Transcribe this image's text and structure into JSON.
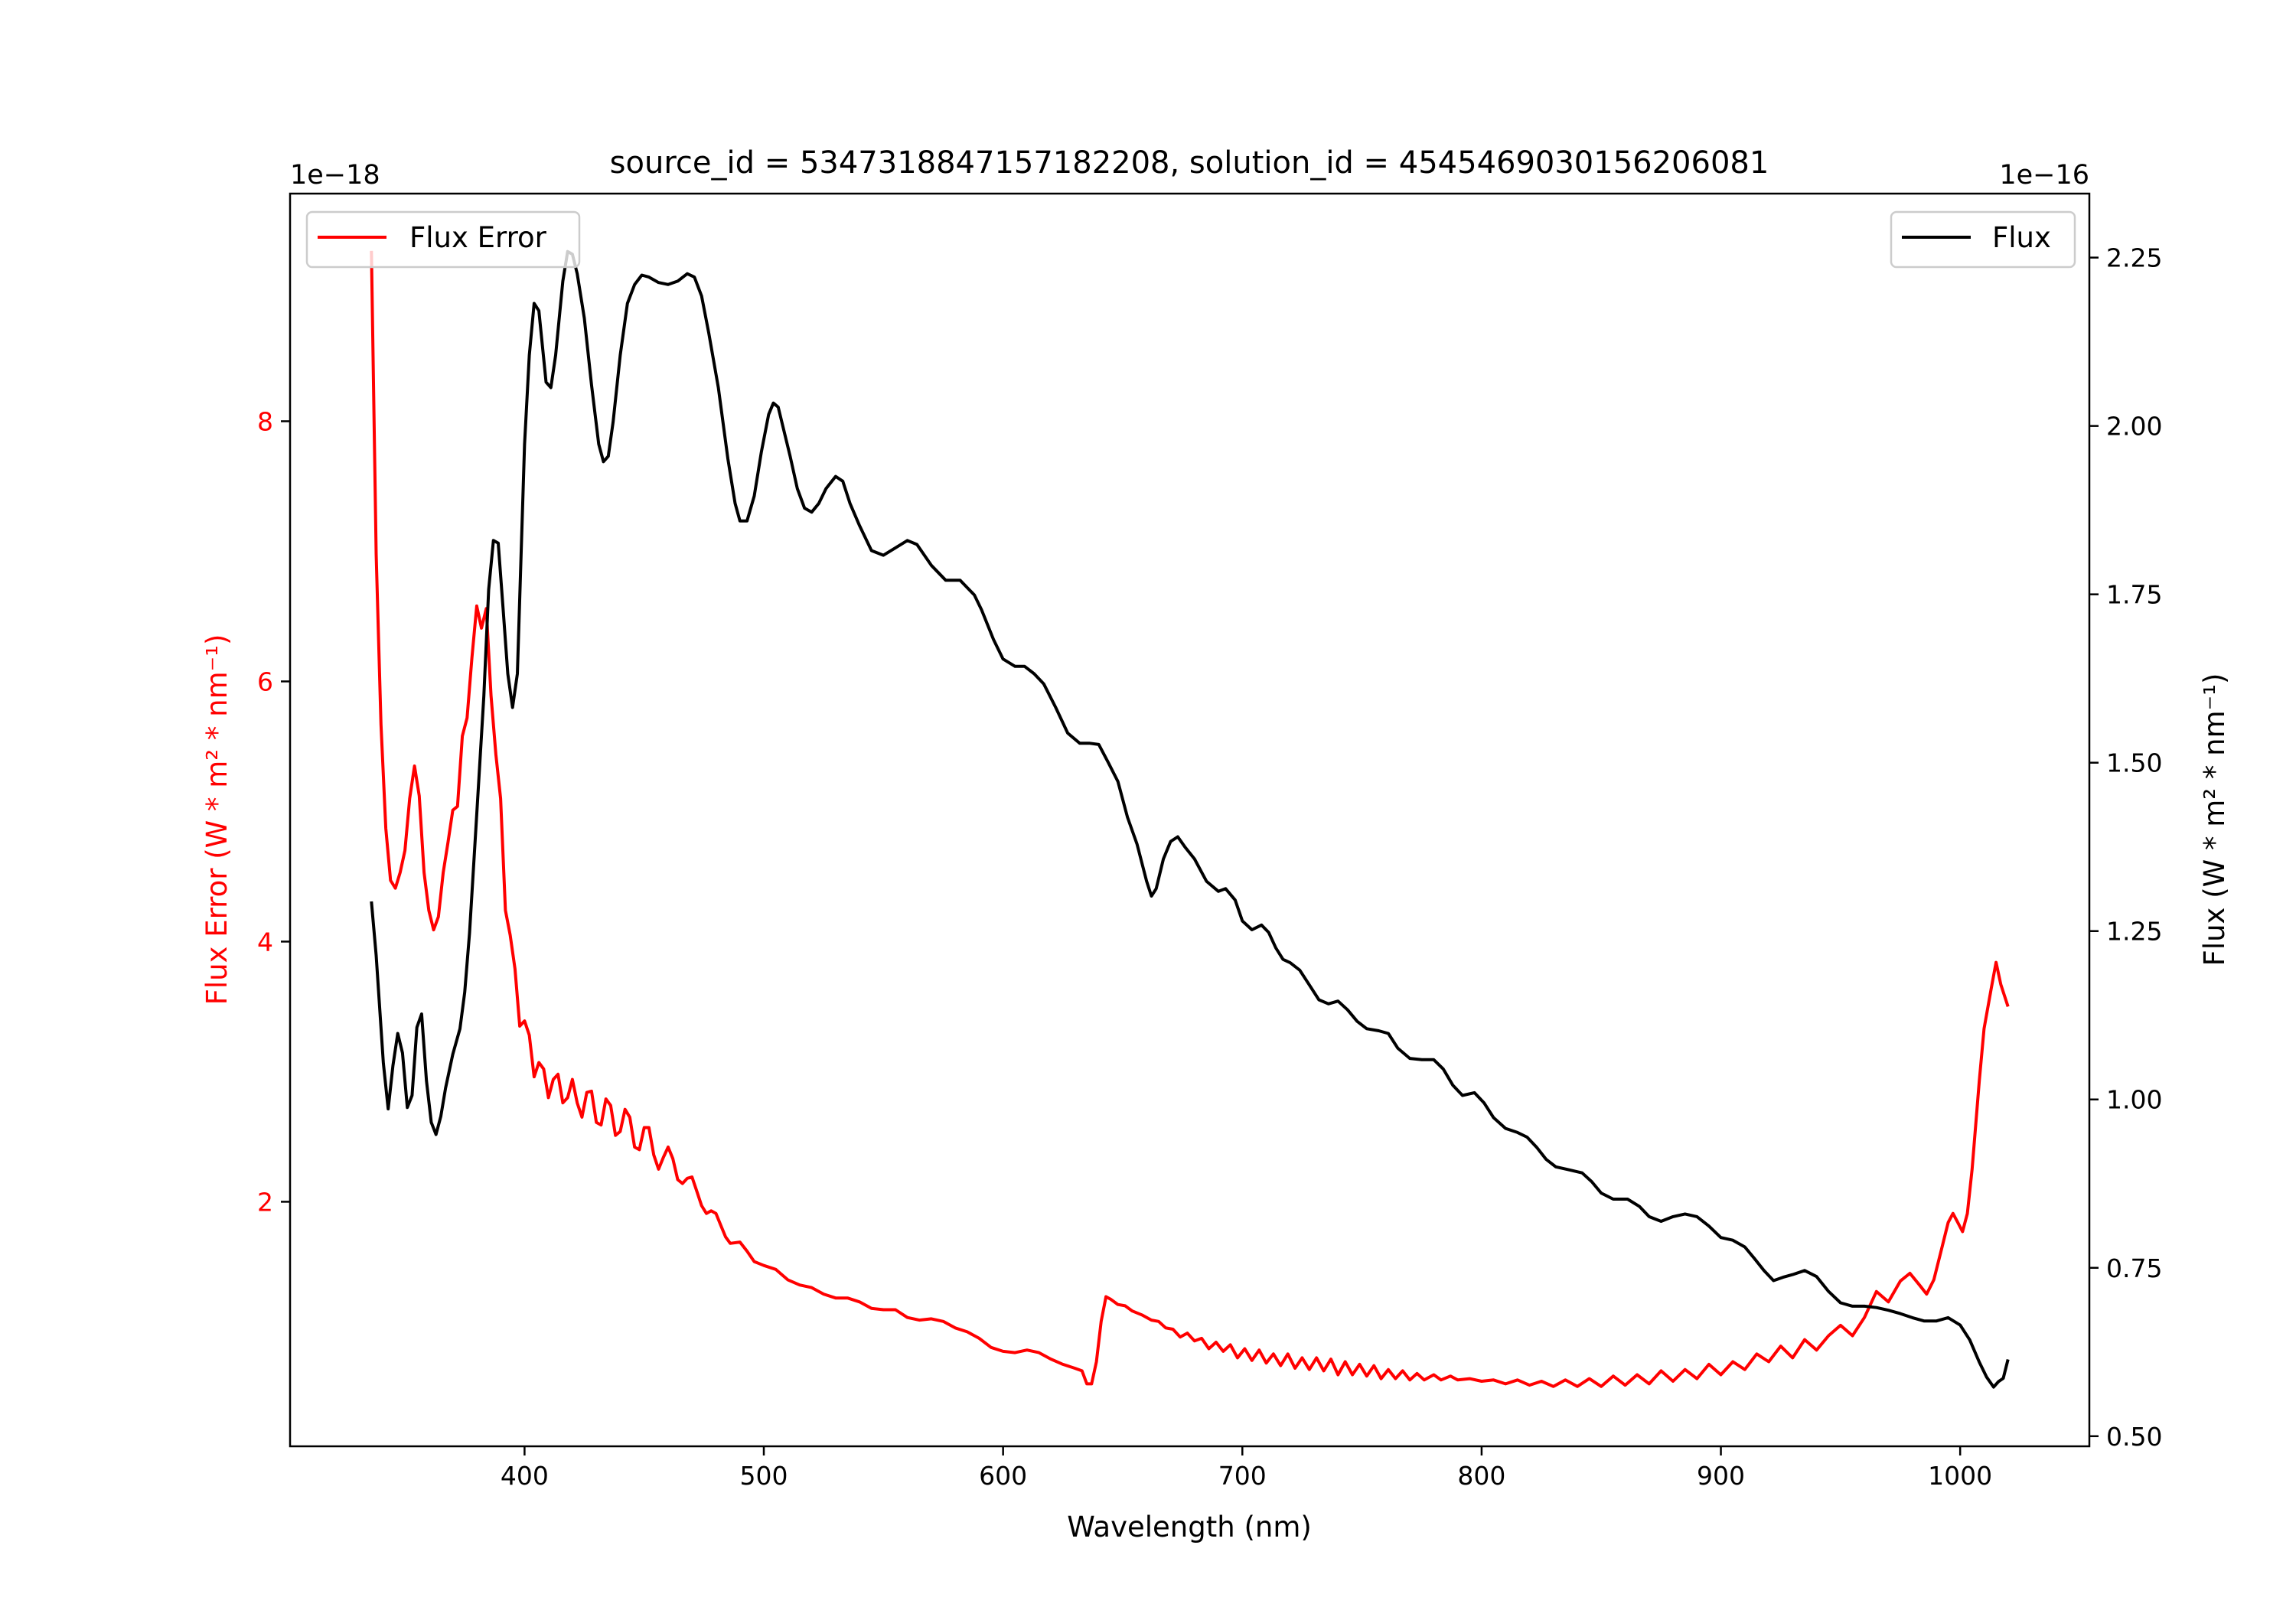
{
  "chart_data": {
    "type": "line",
    "title": "source_id = 5347318847157182208, solution_id = 4545469030156206081",
    "xlabel": "Wavelength (nm)",
    "xlim": [
      302,
      1054
    ],
    "xticks": [
      400,
      500,
      600,
      700,
      800,
      900,
      1000
    ],
    "axes": {
      "left": {
        "label": "Flux Error (W * m² * nm⁻¹)",
        "offset_text": "1e−18",
        "ylim": [
          0.12,
          9.75
        ],
        "ticks": [
          2,
          4,
          6,
          8
        ],
        "color": "#ff0000"
      },
      "right": {
        "label": "Flux (W * m² * nm⁻¹)",
        "offset_text": "1e−16",
        "ylim": [
          0.485,
          2.345
        ],
        "ticks": [
          0.5,
          0.75,
          1.0,
          1.25,
          1.5,
          1.75,
          2.0,
          2.25
        ],
        "color": "#000000"
      }
    },
    "series": [
      {
        "name": "Flux Error",
        "axis": "left",
        "color": "#ff0000",
        "legend": "upper-left",
        "x": [
          336,
          338,
          340,
          342,
          344,
          346,
          348,
          350,
          352,
          354,
          356,
          358,
          360,
          362,
          364,
          366,
          368,
          370,
          372,
          374,
          376,
          378,
          380,
          382,
          384,
          386,
          388,
          390,
          392,
          394,
          396,
          398,
          400,
          402,
          404,
          406,
          408,
          410,
          412,
          414,
          416,
          418,
          420,
          422,
          424,
          426,
          428,
          430,
          432,
          434,
          436,
          438,
          440,
          442,
          444,
          446,
          448,
          450,
          452,
          454,
          456,
          458,
          460,
          462,
          464,
          466,
          468,
          470,
          472,
          474,
          476,
          478,
          480,
          482,
          484,
          486,
          490,
          493,
          496,
          500,
          505,
          510,
          515,
          520,
          525,
          530,
          535,
          540,
          545,
          550,
          555,
          560,
          565,
          570,
          575,
          580,
          585,
          590,
          595,
          600,
          605,
          610,
          615,
          620,
          625,
          630,
          633,
          635,
          637,
          639,
          641,
          643,
          645,
          648,
          651,
          654,
          658,
          662,
          665,
          668,
          671,
          674,
          677,
          680,
          683,
          686,
          689,
          692,
          695,
          698,
          701,
          704,
          707,
          710,
          713,
          716,
          719,
          722,
          725,
          728,
          731,
          734,
          737,
          740,
          743,
          746,
          749,
          752,
          755,
          758,
          761,
          764,
          767,
          770,
          773,
          776,
          780,
          783,
          787,
          790,
          795,
          800,
          805,
          810,
          815,
          820,
          825,
          830,
          835,
          840,
          845,
          850,
          855,
          860,
          865,
          870,
          875,
          880,
          885,
          890,
          895,
          900,
          905,
          910,
          915,
          920,
          925,
          930,
          935,
          940,
          945,
          950,
          955,
          960,
          965,
          970,
          975,
          979,
          983,
          986,
          989,
          992,
          995,
          997,
          999,
          1001,
          1003,
          1005,
          1008,
          1010,
          1013,
          1015,
          1017,
          1020
        ],
        "y": [
          9.31,
          6.98,
          5.67,
          4.87,
          4.47,
          4.41,
          4.53,
          4.7,
          5.1,
          5.35,
          5.12,
          4.53,
          4.24,
          4.09,
          4.19,
          4.53,
          4.76,
          5.01,
          5.04,
          5.58,
          5.72,
          6.18,
          6.58,
          6.41,
          6.56,
          5.89,
          5.44,
          5.1,
          4.24,
          4.05,
          3.79,
          3.35,
          3.39,
          3.28,
          2.96,
          3.07,
          3.02,
          2.8,
          2.94,
          2.98,
          2.76,
          2.8,
          2.94,
          2.76,
          2.65,
          2.84,
          2.85,
          2.61,
          2.59,
          2.79,
          2.74,
          2.51,
          2.54,
          2.71,
          2.65,
          2.42,
          2.4,
          2.57,
          2.57,
          2.36,
          2.25,
          2.34,
          2.42,
          2.33,
          2.17,
          2.14,
          2.18,
          2.19,
          2.08,
          1.97,
          1.91,
          1.93,
          1.91,
          1.82,
          1.73,
          1.68,
          1.69,
          1.62,
          1.54,
          1.51,
          1.48,
          1.4,
          1.36,
          1.34,
          1.29,
          1.26,
          1.26,
          1.23,
          1.18,
          1.17,
          1.17,
          1.11,
          1.09,
          1.1,
          1.08,
          1.03,
          1.0,
          0.95,
          0.88,
          0.85,
          0.84,
          0.86,
          0.84,
          0.79,
          0.75,
          0.72,
          0.7,
          0.6,
          0.6,
          0.77,
          1.08,
          1.27,
          1.25,
          1.21,
          1.2,
          1.16,
          1.13,
          1.09,
          1.08,
          1.03,
          1.02,
          0.96,
          0.99,
          0.93,
          0.95,
          0.87,
          0.92,
          0.85,
          0.9,
          0.8,
          0.87,
          0.78,
          0.86,
          0.76,
          0.83,
          0.74,
          0.83,
          0.72,
          0.8,
          0.71,
          0.8,
          0.7,
          0.79,
          0.67,
          0.77,
          0.67,
          0.75,
          0.66,
          0.74,
          0.64,
          0.71,
          0.64,
          0.7,
          0.63,
          0.68,
          0.63,
          0.67,
          0.63,
          0.66,
          0.63,
          0.64,
          0.62,
          0.63,
          0.6,
          0.63,
          0.59,
          0.62,
          0.58,
          0.63,
          0.58,
          0.64,
          0.58,
          0.66,
          0.59,
          0.67,
          0.6,
          0.7,
          0.62,
          0.71,
          0.64,
          0.75,
          0.67,
          0.77,
          0.71,
          0.83,
          0.77,
          0.89,
          0.8,
          0.94,
          0.86,
          0.97,
          1.05,
          0.97,
          1.11,
          1.31,
          1.23,
          1.39,
          1.45,
          1.36,
          1.29,
          1.4,
          1.62,
          1.84,
          1.91,
          1.84,
          1.77,
          1.91,
          2.25,
          2.93,
          3.33,
          3.64,
          3.84,
          3.67,
          3.5
        ]
      },
      {
        "name": "Flux",
        "axis": "right",
        "color": "#000000",
        "legend": "upper-right",
        "x": [
          336,
          338,
          341,
          343,
          345,
          347,
          349,
          351,
          353,
          355,
          357,
          359,
          361,
          363,
          365,
          367,
          370,
          373,
          375,
          377,
          380,
          383,
          385,
          387,
          389,
          391,
          393,
          395,
          397,
          400,
          402,
          404,
          406,
          409,
          411,
          413,
          416,
          418,
          420,
          422,
          425,
          428,
          431,
          433,
          435,
          437,
          440,
          443,
          446,
          449,
          452,
          456,
          460,
          464,
          468,
          471,
          474,
          477,
          481,
          485,
          488,
          490,
          493,
          496,
          499,
          502,
          504,
          506,
          508,
          511,
          514,
          517,
          520,
          523,
          526,
          530,
          533,
          536,
          540,
          545,
          550,
          555,
          560,
          564,
          570,
          576,
          582,
          588,
          591,
          596,
          600,
          605,
          609,
          613,
          617,
          622,
          627,
          632,
          636,
          640,
          644,
          648,
          652,
          656,
          660,
          662,
          664,
          667,
          670,
          673,
          676,
          680,
          685,
          690,
          693,
          697,
          700,
          704,
          708,
          711,
          714,
          717,
          720,
          724,
          728,
          732,
          736,
          740,
          744,
          748,
          752,
          757,
          761,
          765,
          770,
          775,
          780,
          784,
          788,
          792,
          797,
          801,
          805,
          810,
          815,
          819,
          823,
          827,
          831,
          836,
          842,
          846,
          850,
          855,
          861,
          866,
          870,
          875,
          880,
          885,
          890,
          895,
          900,
          905,
          910,
          914,
          918,
          922,
          926,
          930,
          935,
          940,
          945,
          950,
          955,
          960,
          965,
          970,
          975,
          980,
          985,
          990,
          995,
          1000,
          1004,
          1008,
          1011,
          1014,
          1016,
          1018,
          1020
        ],
        "y": [
          1.294,
          1.214,
          1.054,
          0.986,
          1.05,
          1.098,
          1.069,
          0.988,
          1.006,
          1.107,
          1.127,
          1.028,
          0.966,
          0.948,
          0.975,
          1.017,
          1.067,
          1.105,
          1.159,
          1.247,
          1.423,
          1.599,
          1.757,
          1.83,
          1.826,
          1.731,
          1.632,
          1.582,
          1.632,
          1.973,
          2.105,
          2.182,
          2.171,
          2.065,
          2.057,
          2.105,
          2.215,
          2.259,
          2.255,
          2.226,
          2.16,
          2.061,
          1.973,
          1.947,
          1.955,
          2.006,
          2.105,
          2.182,
          2.21,
          2.224,
          2.221,
          2.213,
          2.21,
          2.215,
          2.226,
          2.221,
          2.193,
          2.138,
          2.057,
          1.951,
          1.885,
          1.859,
          1.859,
          1.896,
          1.962,
          2.017,
          2.034,
          2.028,
          1.999,
          1.955,
          1.907,
          1.878,
          1.872,
          1.885,
          1.907,
          1.925,
          1.918,
          1.885,
          1.852,
          1.815,
          1.808,
          1.819,
          1.83,
          1.824,
          1.793,
          1.771,
          1.771,
          1.749,
          1.727,
          1.683,
          1.654,
          1.643,
          1.643,
          1.632,
          1.617,
          1.582,
          1.544,
          1.529,
          1.529,
          1.527,
          1.5,
          1.472,
          1.419,
          1.379,
          1.324,
          1.302,
          1.313,
          1.357,
          1.383,
          1.39,
          1.375,
          1.357,
          1.324,
          1.309,
          1.313,
          1.296,
          1.265,
          1.252,
          1.259,
          1.248,
          1.225,
          1.208,
          1.203,
          1.192,
          1.17,
          1.148,
          1.142,
          1.146,
          1.133,
          1.116,
          1.105,
          1.102,
          1.098,
          1.076,
          1.061,
          1.059,
          1.059,
          1.045,
          1.021,
          1.006,
          1.01,
          0.995,
          0.973,
          0.957,
          0.951,
          0.944,
          0.929,
          0.911,
          0.9,
          0.896,
          0.891,
          0.878,
          0.861,
          0.852,
          0.852,
          0.841,
          0.826,
          0.819,
          0.826,
          0.83,
          0.826,
          0.812,
          0.795,
          0.791,
          0.781,
          0.764,
          0.746,
          0.731,
          0.736,
          0.74,
          0.746,
          0.737,
          0.715,
          0.698,
          0.693,
          0.693,
          0.691,
          0.687,
          0.682,
          0.676,
          0.671,
          0.671,
          0.676,
          0.665,
          0.643,
          0.61,
          0.588,
          0.573,
          0.581,
          0.586,
          0.614
        ]
      }
    ]
  }
}
